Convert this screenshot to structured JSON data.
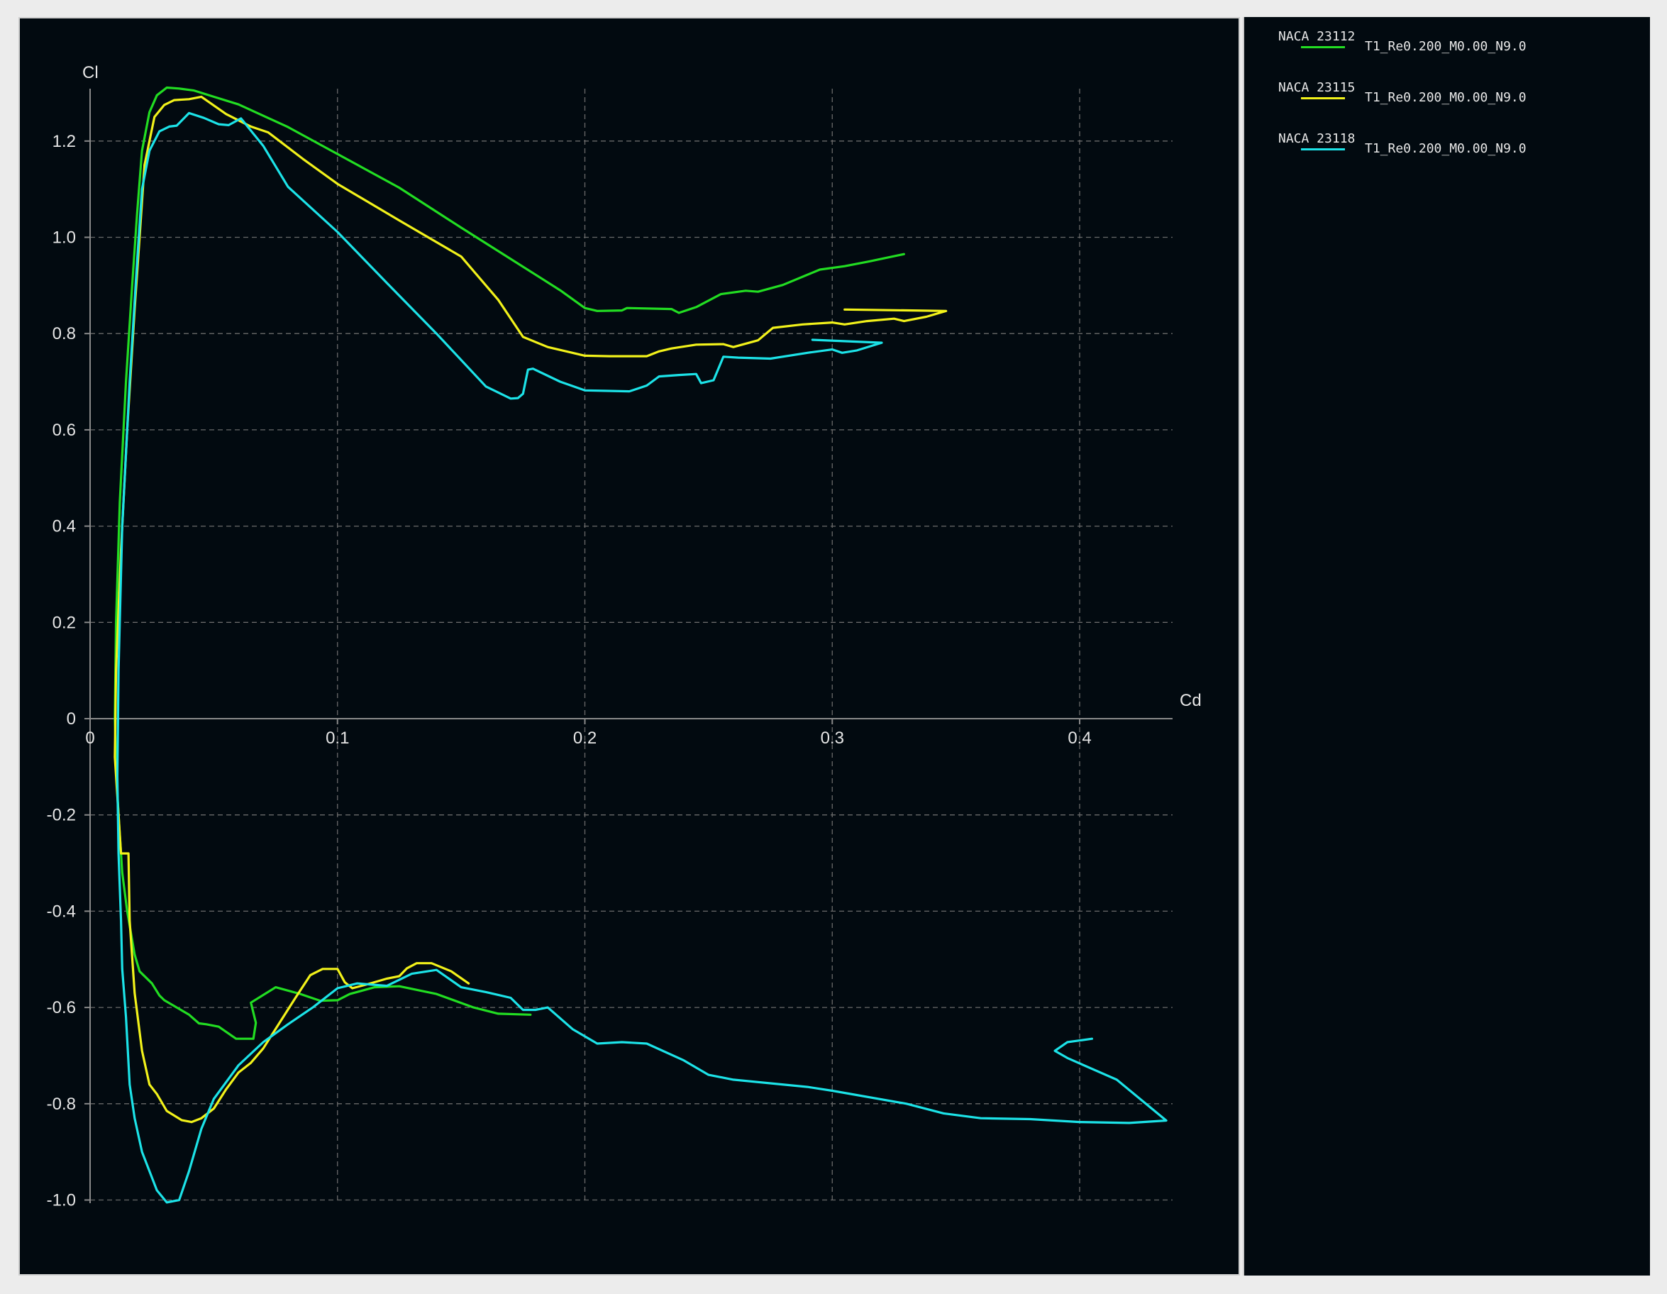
{
  "chart_data": {
    "type": "line",
    "title": "",
    "xlabel": "Cd",
    "ylabel": "Cl",
    "xlim": [
      0,
      0.435
    ],
    "ylim": [
      -1.0,
      1.33
    ],
    "xticks": [
      0,
      0.1,
      0.2,
      0.3,
      0.4
    ],
    "xtick_labels": [
      "0",
      "0.1",
      "0.2",
      "0.3",
      "0.4"
    ],
    "yticks": [
      -1.0,
      -0.8,
      -0.6,
      -0.4,
      -0.2,
      0,
      0.2,
      0.4,
      0.6,
      0.8,
      1.0,
      1.2
    ],
    "ytick_labels": [
      "-1.0",
      "-0.8",
      "-0.6",
      "-0.4",
      "-0.2",
      "0",
      "0.2",
      "0.4",
      "0.6",
      "0.8",
      "1.0",
      "1.2"
    ],
    "grid": true,
    "legend_position": "right-panel",
    "series": [
      {
        "name": "NACA 23112",
        "config": "T1_Re0.200_M0.00_N9.0",
        "color": "#22dd22",
        "points": [
          [
            0.178,
            -0.615
          ],
          [
            0.165,
            -0.613
          ],
          [
            0.155,
            -0.6
          ],
          [
            0.14,
            -0.572
          ],
          [
            0.125,
            -0.556
          ],
          [
            0.115,
            -0.558
          ],
          [
            0.105,
            -0.572
          ],
          [
            0.1,
            -0.585
          ],
          [
            0.093,
            -0.586
          ],
          [
            0.085,
            -0.572
          ],
          [
            0.075,
            -0.558
          ],
          [
            0.065,
            -0.59
          ],
          [
            0.067,
            -0.632
          ],
          [
            0.066,
            -0.665
          ],
          [
            0.059,
            -0.665
          ],
          [
            0.052,
            -0.64
          ],
          [
            0.047,
            -0.635
          ],
          [
            0.044,
            -0.633
          ],
          [
            0.04,
            -0.615
          ],
          [
            0.03,
            -0.585
          ],
          [
            0.028,
            -0.575
          ],
          [
            0.025,
            -0.55
          ],
          [
            0.02,
            -0.525
          ],
          [
            0.018,
            -0.49
          ],
          [
            0.015,
            -0.4
          ],
          [
            0.013,
            -0.32
          ],
          [
            0.0115,
            -0.2
          ],
          [
            0.0105,
            -0.1
          ],
          [
            0.01,
            0.0
          ],
          [
            0.0105,
            0.2
          ],
          [
            0.012,
            0.45
          ],
          [
            0.0145,
            0.7
          ],
          [
            0.017,
            0.9
          ],
          [
            0.019,
            1.05
          ],
          [
            0.021,
            1.18
          ],
          [
            0.024,
            1.26
          ],
          [
            0.027,
            1.295
          ],
          [
            0.031,
            1.311
          ],
          [
            0.036,
            1.309
          ],
          [
            0.042,
            1.305
          ],
          [
            0.05,
            1.292
          ],
          [
            0.06,
            1.276
          ],
          [
            0.08,
            1.229
          ],
          [
            0.1,
            1.173
          ],
          [
            0.125,
            1.103
          ],
          [
            0.15,
            1.02
          ],
          [
            0.17,
            0.955
          ],
          [
            0.19,
            0.89
          ],
          [
            0.2,
            0.853
          ],
          [
            0.205,
            0.847
          ],
          [
            0.215,
            0.848
          ],
          [
            0.217,
            0.853
          ],
          [
            0.235,
            0.851
          ],
          [
            0.238,
            0.843
          ],
          [
            0.245,
            0.855
          ],
          [
            0.255,
            0.882
          ],
          [
            0.265,
            0.889
          ],
          [
            0.27,
            0.887
          ],
          [
            0.28,
            0.901
          ],
          [
            0.295,
            0.933
          ],
          [
            0.305,
            0.94
          ],
          [
            0.315,
            0.95
          ],
          [
            0.329,
            0.965
          ]
        ]
      },
      {
        "name": "NACA 23115",
        "config": "T1_Re0.200_M0.00_N9.0",
        "color": "#f2f21a",
        "points": [
          [
            0.153,
            -0.55
          ],
          [
            0.146,
            -0.525
          ],
          [
            0.138,
            -0.508
          ],
          [
            0.132,
            -0.508
          ],
          [
            0.128,
            -0.519
          ],
          [
            0.125,
            -0.535
          ],
          [
            0.12,
            -0.54
          ],
          [
            0.112,
            -0.552
          ],
          [
            0.106,
            -0.56
          ],
          [
            0.103,
            -0.548
          ],
          [
            0.1,
            -0.52
          ],
          [
            0.094,
            -0.52
          ],
          [
            0.089,
            -0.533
          ],
          [
            0.083,
            -0.58
          ],
          [
            0.07,
            -0.685
          ],
          [
            0.065,
            -0.715
          ],
          [
            0.06,
            -0.735
          ],
          [
            0.055,
            -0.77
          ],
          [
            0.05,
            -0.81
          ],
          [
            0.045,
            -0.83
          ],
          [
            0.041,
            -0.838
          ],
          [
            0.037,
            -0.834
          ],
          [
            0.031,
            -0.815
          ],
          [
            0.027,
            -0.78
          ],
          [
            0.024,
            -0.76
          ],
          [
            0.021,
            -0.69
          ],
          [
            0.018,
            -0.57
          ],
          [
            0.016,
            -0.42
          ],
          [
            0.0155,
            -0.28
          ],
          [
            0.0125,
            -0.28
          ],
          [
            0.011,
            -0.16
          ],
          [
            0.01,
            -0.08
          ],
          [
            0.0105,
            0.1
          ],
          [
            0.0125,
            0.35
          ],
          [
            0.015,
            0.6
          ],
          [
            0.018,
            0.85
          ],
          [
            0.02,
            1.0
          ],
          [
            0.022,
            1.15
          ],
          [
            0.026,
            1.25
          ],
          [
            0.03,
            1.275
          ],
          [
            0.034,
            1.285
          ],
          [
            0.04,
            1.287
          ],
          [
            0.045,
            1.292
          ],
          [
            0.055,
            1.256
          ],
          [
            0.065,
            1.23
          ],
          [
            0.072,
            1.218
          ],
          [
            0.086,
            1.163
          ],
          [
            0.1,
            1.111
          ],
          [
            0.125,
            1.035
          ],
          [
            0.15,
            0.96
          ],
          [
            0.165,
            0.87
          ],
          [
            0.175,
            0.793
          ],
          [
            0.185,
            0.772
          ],
          [
            0.2,
            0.754
          ],
          [
            0.21,
            0.753
          ],
          [
            0.225,
            0.753
          ],
          [
            0.23,
            0.763
          ],
          [
            0.235,
            0.769
          ],
          [
            0.245,
            0.777
          ],
          [
            0.256,
            0.778
          ],
          [
            0.26,
            0.772
          ],
          [
            0.27,
            0.786
          ],
          [
            0.276,
            0.812
          ],
          [
            0.288,
            0.819
          ],
          [
            0.3,
            0.823
          ],
          [
            0.305,
            0.819
          ],
          [
            0.314,
            0.826
          ],
          [
            0.325,
            0.831
          ],
          [
            0.329,
            0.826
          ],
          [
            0.338,
            0.835
          ],
          [
            0.346,
            0.847
          ],
          [
            0.305,
            0.85
          ]
        ]
      },
      {
        "name": "NACA 23118",
        "config": "T1_Re0.200_M0.00_N9.0",
        "color": "#1ce3e8",
        "points": [
          [
            0.405,
            -0.665
          ],
          [
            0.395,
            -0.672
          ],
          [
            0.39,
            -0.69
          ],
          [
            0.395,
            -0.705
          ],
          [
            0.415,
            -0.75
          ],
          [
            0.435,
            -0.835
          ],
          [
            0.42,
            -0.84
          ],
          [
            0.4,
            -0.838
          ],
          [
            0.38,
            -0.832
          ],
          [
            0.36,
            -0.83
          ],
          [
            0.345,
            -0.82
          ],
          [
            0.33,
            -0.8
          ],
          [
            0.3,
            -0.773
          ],
          [
            0.29,
            -0.765
          ],
          [
            0.26,
            -0.75
          ],
          [
            0.25,
            -0.74
          ],
          [
            0.24,
            -0.71
          ],
          [
            0.225,
            -0.675
          ],
          [
            0.215,
            -0.672
          ],
          [
            0.205,
            -0.675
          ],
          [
            0.195,
            -0.645
          ],
          [
            0.185,
            -0.6
          ],
          [
            0.18,
            -0.605
          ],
          [
            0.175,
            -0.605
          ],
          [
            0.17,
            -0.58
          ],
          [
            0.16,
            -0.568
          ],
          [
            0.15,
            -0.558
          ],
          [
            0.14,
            -0.522
          ],
          [
            0.13,
            -0.53
          ],
          [
            0.12,
            -0.555
          ],
          [
            0.108,
            -0.55
          ],
          [
            0.1,
            -0.56
          ],
          [
            0.09,
            -0.6
          ],
          [
            0.08,
            -0.635
          ],
          [
            0.07,
            -0.672
          ],
          [
            0.06,
            -0.72
          ],
          [
            0.05,
            -0.79
          ],
          [
            0.045,
            -0.852
          ],
          [
            0.04,
            -0.94
          ],
          [
            0.036,
            -1.0
          ],
          [
            0.031,
            -1.005
          ],
          [
            0.027,
            -0.98
          ],
          [
            0.021,
            -0.9
          ],
          [
            0.018,
            -0.83
          ],
          [
            0.016,
            -0.76
          ],
          [
            0.0145,
            -0.62
          ],
          [
            0.013,
            -0.52
          ],
          [
            0.0125,
            -0.42
          ],
          [
            0.0115,
            -0.28
          ],
          [
            0.011,
            -0.12
          ],
          [
            0.0115,
            0.1
          ],
          [
            0.013,
            0.4
          ],
          [
            0.016,
            0.7
          ],
          [
            0.019,
            0.95
          ],
          [
            0.021,
            1.1
          ],
          [
            0.024,
            1.18
          ],
          [
            0.028,
            1.22
          ],
          [
            0.032,
            1.23
          ],
          [
            0.035,
            1.232
          ],
          [
            0.04,
            1.258
          ],
          [
            0.046,
            1.248
          ],
          [
            0.052,
            1.235
          ],
          [
            0.056,
            1.233
          ],
          [
            0.061,
            1.247
          ],
          [
            0.07,
            1.19
          ],
          [
            0.08,
            1.105
          ],
          [
            0.1,
            1.011
          ],
          [
            0.12,
            0.905
          ],
          [
            0.14,
            0.8
          ],
          [
            0.16,
            0.69
          ],
          [
            0.17,
            0.665
          ],
          [
            0.173,
            0.666
          ],
          [
            0.175,
            0.675
          ],
          [
            0.177,
            0.725
          ],
          [
            0.179,
            0.727
          ],
          [
            0.19,
            0.7
          ],
          [
            0.2,
            0.682
          ],
          [
            0.208,
            0.681
          ],
          [
            0.218,
            0.68
          ],
          [
            0.225,
            0.692
          ],
          [
            0.23,
            0.711
          ],
          [
            0.238,
            0.714
          ],
          [
            0.245,
            0.716
          ],
          [
            0.247,
            0.697
          ],
          [
            0.252,
            0.703
          ],
          [
            0.256,
            0.752
          ],
          [
            0.262,
            0.75
          ],
          [
            0.275,
            0.748
          ],
          [
            0.29,
            0.76
          ],
          [
            0.3,
            0.767
          ],
          [
            0.304,
            0.76
          ],
          [
            0.31,
            0.765
          ],
          [
            0.32,
            0.781
          ],
          [
            0.292,
            0.787
          ]
        ]
      }
    ]
  }
}
